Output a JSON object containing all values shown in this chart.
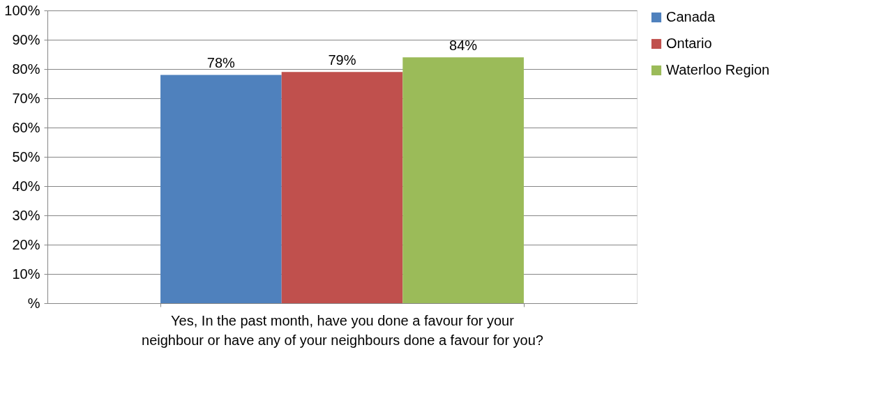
{
  "chart_data": {
    "type": "bar",
    "categories": [
      "Yes, In the past month, have you done a favour for your neighbour or have any of your neighbours done a favour for you?"
    ],
    "series": [
      {
        "name": "Canada",
        "color": "#4f81bd",
        "values": [
          78
        ],
        "value_labels": [
          "78%"
        ]
      },
      {
        "name": "Ontario",
        "color": "#c0504d",
        "values": [
          79
        ],
        "value_labels": [
          "79%"
        ]
      },
      {
        "name": "Waterloo Region",
        "color": "#9bbb59",
        "values": [
          84
        ],
        "value_labels": [
          "84%"
        ]
      }
    ],
    "ylim": [
      0,
      100
    ],
    "yticks": [
      {
        "value": 0,
        "label": "%"
      },
      {
        "value": 10,
        "label": "10%"
      },
      {
        "value": 20,
        "label": "20%"
      },
      {
        "value": 30,
        "label": "30%"
      },
      {
        "value": 40,
        "label": "40%"
      },
      {
        "value": 50,
        "label": "50%"
      },
      {
        "value": 60,
        "label": "60%"
      },
      {
        "value": 70,
        "label": "70%"
      },
      {
        "value": 80,
        "label": "80%"
      },
      {
        "value": 90,
        "label": "90%"
      },
      {
        "value": 100,
        "label": "100%"
      }
    ],
    "grid": "y",
    "legend": "right"
  }
}
